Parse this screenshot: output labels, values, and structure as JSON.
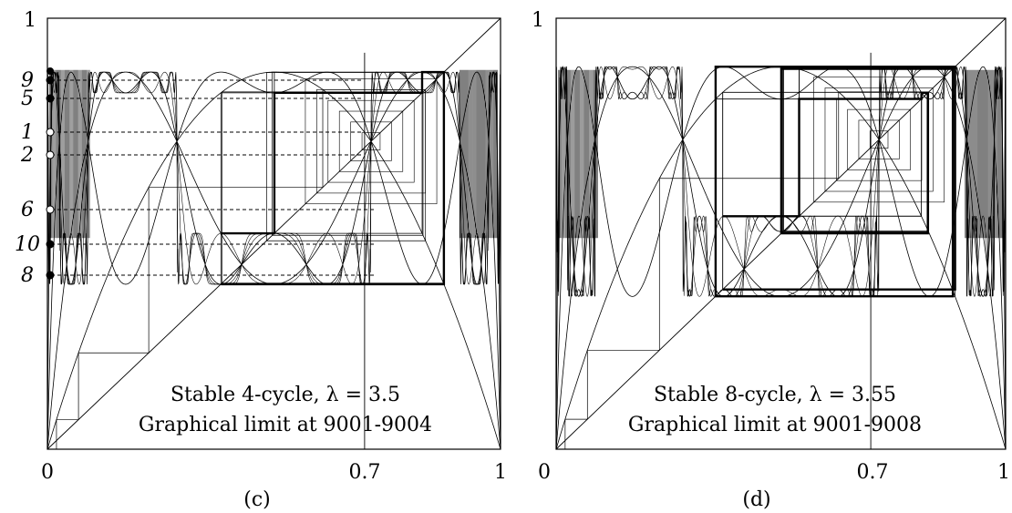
{
  "chart_data": [
    {
      "type": "cobweb",
      "panel_label": "(c)",
      "lambda": 3.5,
      "iterate_labels": [
        "9",
        "5",
        "1",
        "2",
        "6",
        "10",
        "8"
      ],
      "caption_line1": "Stable 4-cycle, λ = 3.5",
      "caption_line2": "Graphical limit at 9001-9004",
      "xlim": [
        0,
        1
      ],
      "ylim": [
        0,
        1
      ],
      "x_ticks": [
        "0",
        "0.7",
        "1"
      ],
      "y_ticks": [
        "1"
      ],
      "cycle": [
        0.38282,
        0.50088,
        0.82694,
        0.875
      ]
    },
    {
      "type": "cobweb",
      "panel_label": "(d)",
      "lambda": 3.55,
      "caption_line1": "Stable 8-cycle, λ = 3.55",
      "caption_line2": "Graphical limit at 9001-9008",
      "xlim": [
        0,
        1
      ],
      "ylim": [
        0,
        1
      ],
      "x_ticks": [
        "0",
        "0.7",
        "1"
      ],
      "y_ticks": [
        "1"
      ],
      "cycle": [
        0.37054,
        0.5406,
        0.8127,
        0.82694,
        0.50088,
        0.8826,
        0.3548,
        0.8876
      ]
    }
  ]
}
